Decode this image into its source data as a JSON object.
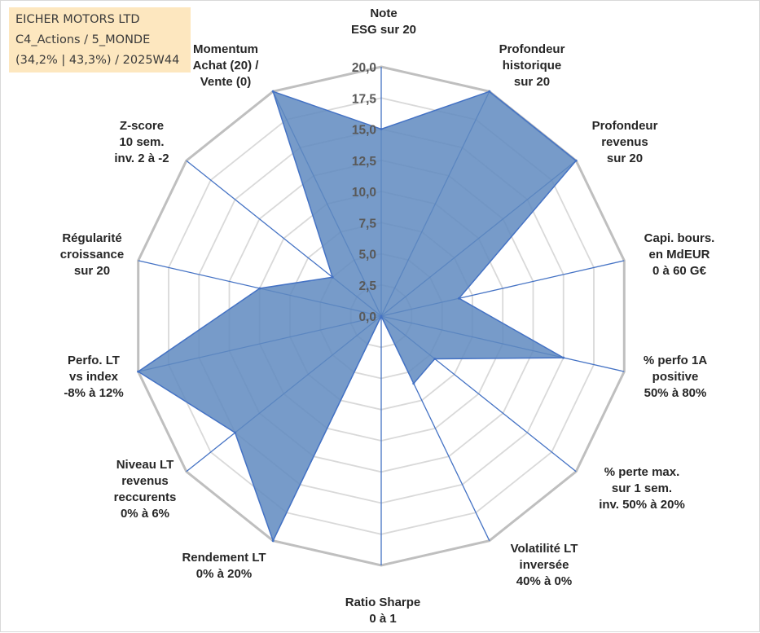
{
  "header": {
    "line1": "EICHER MOTORS LTD",
    "line2": "C4_Actions / 5_MONDE",
    "line3": "(34,2% | 43,3%) / 2025W44"
  },
  "colors": {
    "fill": "#5f8ac0",
    "stroke": "#4472c4",
    "grid_major": "#bfbfbf",
    "grid_minor": "#d9d9d9",
    "header_bg": "#fde7bf"
  },
  "chart_data": {
    "type": "radar",
    "title": "EICHER MOTORS LTD",
    "range": [
      0,
      20
    ],
    "tick_values": [
      0,
      2.5,
      5,
      7.5,
      10,
      12.5,
      15,
      17.5,
      20
    ],
    "tick_labels": [
      "0,0",
      "2,5",
      "5,0",
      "7,5",
      "10,0",
      "12,5",
      "15,0",
      "17,5",
      "20,0"
    ],
    "axes": [
      {
        "label": [
          "Note",
          "ESG sur 20"
        ],
        "value": 15
      },
      {
        "label": [
          "Profondeur",
          "historique",
          "sur 20"
        ],
        "value": 20
      },
      {
        "label": [
          "Profondeur",
          "revenus",
          "sur 20"
        ],
        "value": 20
      },
      {
        "label": [
          "Capi. bours.",
          "en MdEUR",
          "0 à 60 G€"
        ],
        "value": 6.4
      },
      {
        "label": [
          "% perfo 1A",
          "positive",
          "50% à 80%"
        ],
        "value": 15
      },
      {
        "label": [
          "% perte max.",
          "sur 1 sem.",
          "inv. 50% à 20%"
        ],
        "value": 5.5
      },
      {
        "label": [
          "Volatilité LT",
          "inversée",
          "40% à 0%"
        ],
        "value": 6
      },
      {
        "label": [
          "Ratio Sharpe",
          "0 à 1"
        ],
        "value": 0
      },
      {
        "label": [
          "Rendement LT",
          "0% à 20%"
        ],
        "value": 20
      },
      {
        "label": [
          "Niveau LT",
          "revenus",
          "reccurents",
          "0% à 6%"
        ],
        "value": 15
      },
      {
        "label": [
          "Perfo. LT",
          "vs index",
          "-8% à 12%"
        ],
        "value": 20
      },
      {
        "label": [
          "Régularité",
          "croissance",
          "sur 20"
        ],
        "value": 10
      },
      {
        "label": [
          "Z-score",
          "10 sem.",
          "inv. 2 à -2"
        ],
        "value": 5
      },
      {
        "label": [
          "Momentum",
          "Achat (20) /",
          "Vente (0)"
        ],
        "value": 20
      }
    ]
  }
}
